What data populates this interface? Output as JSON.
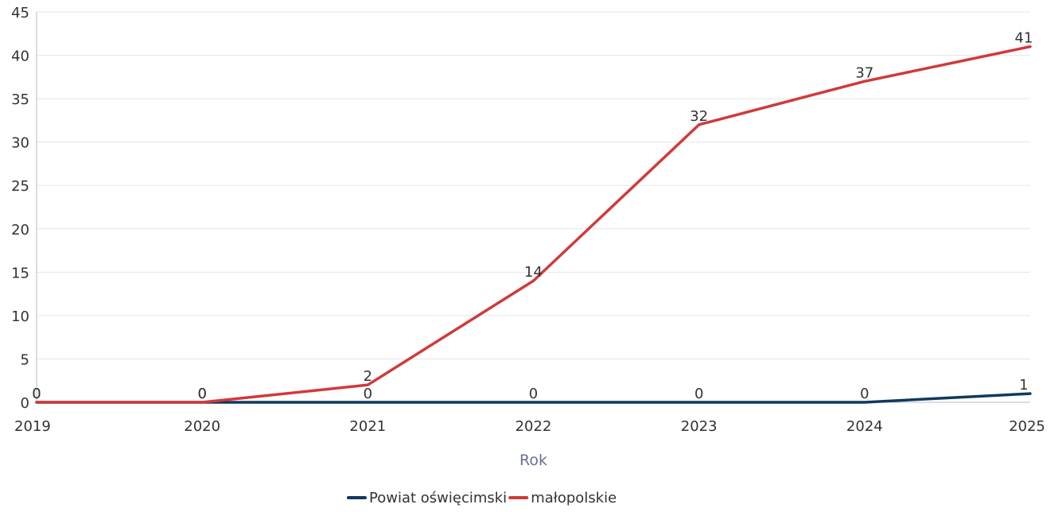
{
  "chart_data": {
    "type": "line",
    "categories": [
      "2019",
      "2020",
      "2021",
      "2022",
      "2023",
      "2024",
      "2025"
    ],
    "series": [
      {
        "name": "Powiat oświęcimski",
        "color": "#0f3a5f",
        "values": [
          0,
          0,
          0,
          0,
          0,
          0,
          1
        ]
      },
      {
        "name": "małopolskie",
        "color": "#d03a3a",
        "values": [
          0,
          0,
          2,
          14,
          32,
          37,
          41
        ]
      }
    ],
    "xlabel": "Rok",
    "ylabel": "",
    "ylim": [
      0,
      45
    ],
    "yticks": [
      "0",
      "5",
      "10",
      "15",
      "20",
      "25",
      "30",
      "35",
      "40",
      "45"
    ],
    "grid": true,
    "legend_position": "bottom-center"
  }
}
